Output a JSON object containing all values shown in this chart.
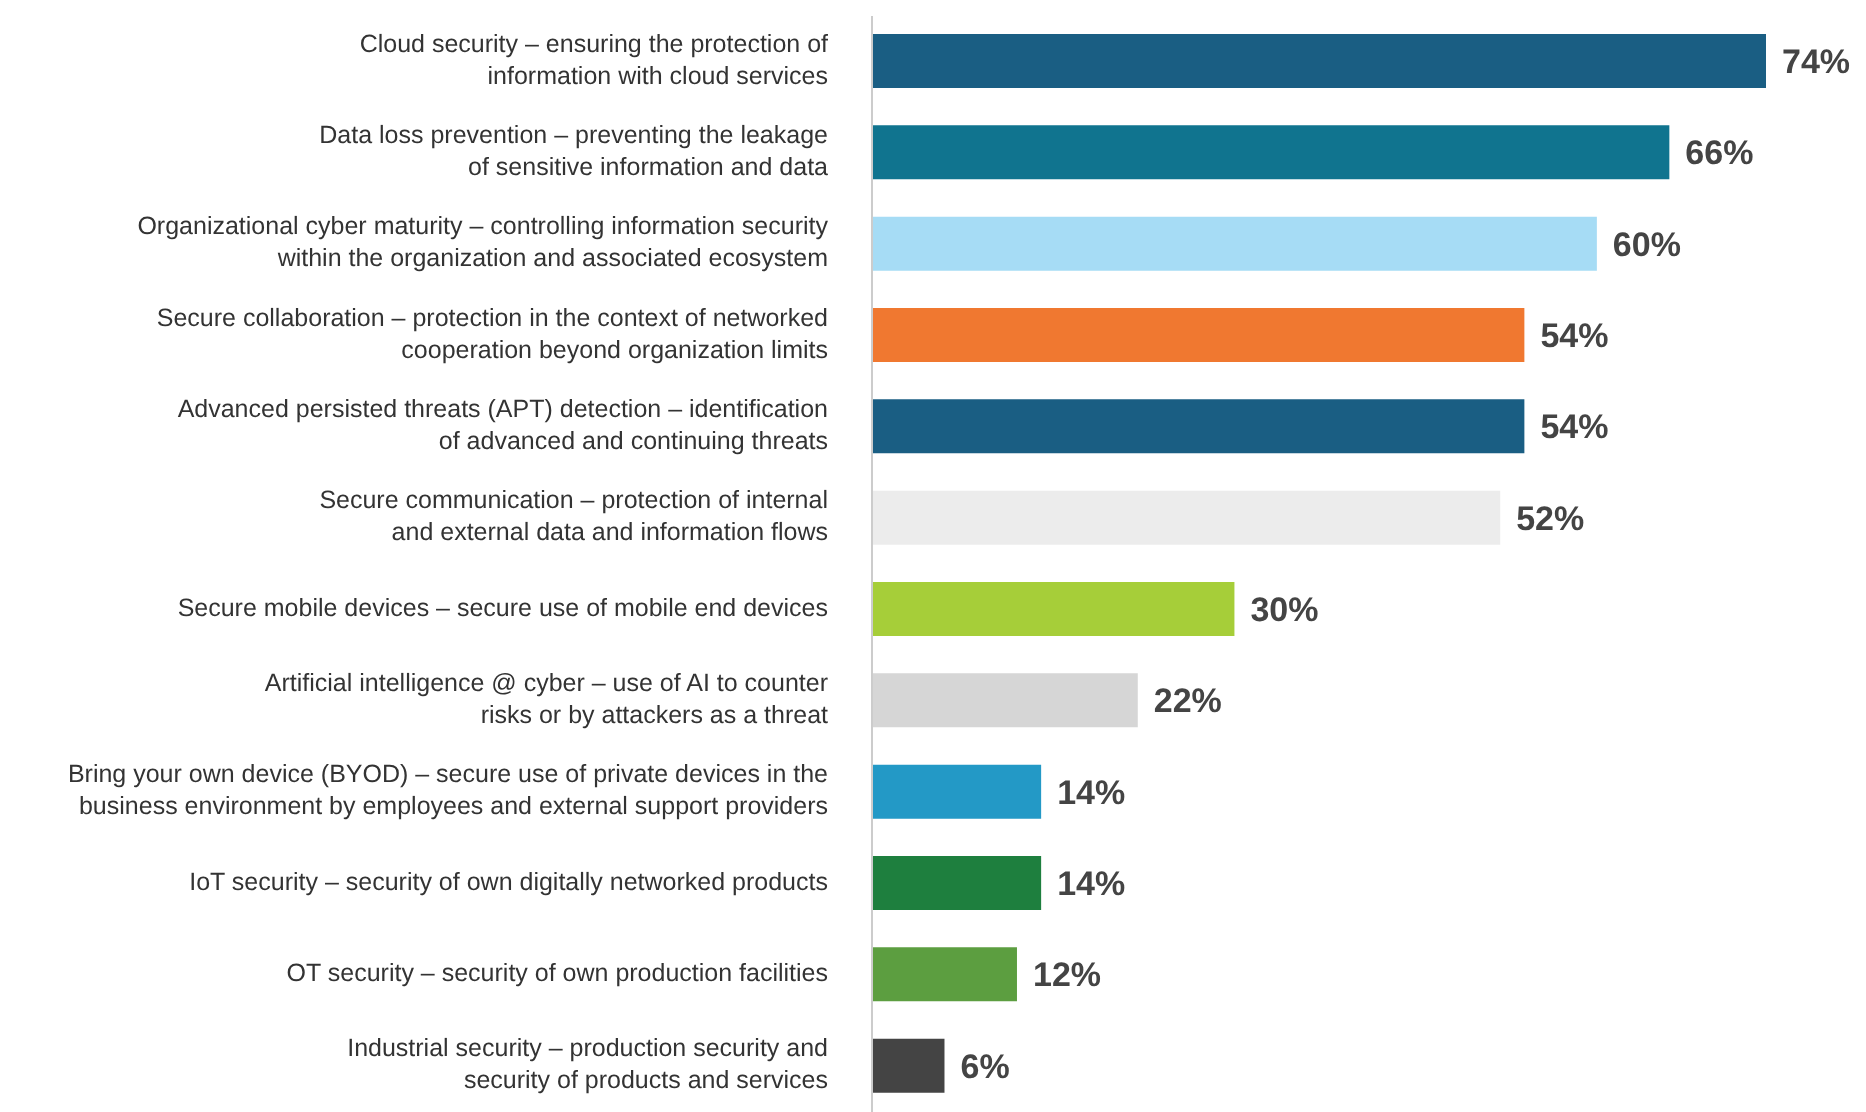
{
  "chart_data": {
    "type": "bar",
    "orientation": "horizontal",
    "categories": [
      "Cloud security – ensuring the protection of\ninformation with cloud services",
      "Data loss prevention – preventing the leakage\nof sensitive information and data",
      "Organizational cyber maturity – controlling information security\nwithin the organization and associated ecosystem",
      "Secure collaboration – protection in the context of networked\ncooperation beyond organization limits",
      "Advanced persisted threats (APT) detection – identification\nof advanced and continuing threats",
      "Secure communication – protection of internal\nand external data and information flows",
      "Secure mobile devices – secure use of mobile end devices",
      "Artificial intelligence @ cyber – use of AI to counter\nrisks or by attackers as a threat",
      "Bring your own device (BYOD) – secure use of private devices in the\nbusiness environment by employees and external support providers",
      "IoT security – security of own digitally networked products",
      "OT security – security of own production facilities",
      "Industrial security – production security and\nsecurity of products and services"
    ],
    "values": [
      74,
      66,
      60,
      54,
      54,
      52,
      30,
      22,
      14,
      14,
      12,
      6
    ],
    "value_labels": [
      "74%",
      "66%",
      "60%",
      "54%",
      "54%",
      "52%",
      "30%",
      "22%",
      "14%",
      "14%",
      "12%",
      "6%"
    ],
    "colors": [
      "#1a5e83",
      "#10748f",
      "#a6dcf5",
      "#f07830",
      "#1a5e83",
      "#ececec",
      "#a6ce39",
      "#d6d6d6",
      "#2399c6",
      "#1e7f3e",
      "#5c9e40",
      "#444444"
    ],
    "xlim": [
      0,
      74
    ],
    "tick_labels": "y"
  }
}
